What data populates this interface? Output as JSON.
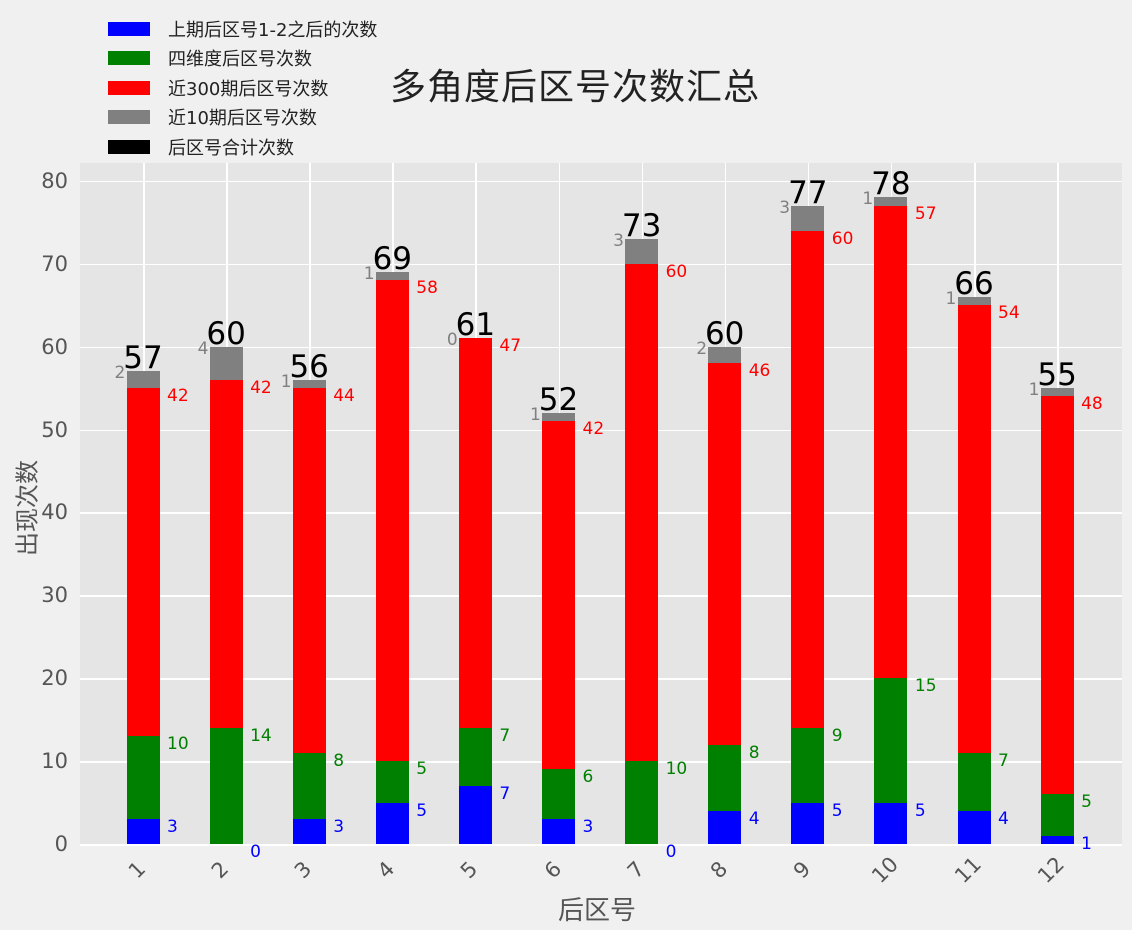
{
  "chart_data": {
    "type": "bar",
    "stacked": true,
    "title": "多角度后区号次数汇总",
    "xlabel": "后区号",
    "ylabel": "出现次数",
    "ylim": [
      0,
      80
    ],
    "yticks": [
      0,
      10,
      20,
      30,
      40,
      50,
      60,
      70,
      80
    ],
    "grid": true,
    "legend_position": "upper left",
    "categories": [
      "1",
      "2",
      "3",
      "4",
      "5",
      "6",
      "7",
      "8",
      "9",
      "10",
      "11",
      "12"
    ],
    "series": [
      {
        "name": "上期后区号1-2之后的次数",
        "color": "#0000ff",
        "values": [
          3,
          0,
          3,
          5,
          7,
          3,
          0,
          4,
          5,
          5,
          4,
          1
        ]
      },
      {
        "name": "四维度后区号次数",
        "color": "#008000",
        "values": [
          10,
          14,
          8,
          5,
          7,
          6,
          10,
          8,
          9,
          15,
          7,
          5
        ]
      },
      {
        "name": "近300期后区号次数",
        "color": "#ff0000",
        "values": [
          42,
          42,
          44,
          58,
          47,
          42,
          60,
          46,
          60,
          57,
          54,
          48
        ]
      },
      {
        "name": "近10期后区号次数",
        "color": "#808080",
        "values": [
          2,
          4,
          1,
          1,
          0,
          1,
          3,
          2,
          3,
          1,
          1,
          1
        ]
      },
      {
        "name": "后区号合计次数",
        "color": "#000000",
        "values": [
          57,
          60,
          56,
          69,
          61,
          52,
          73,
          60,
          77,
          78,
          66,
          55
        ]
      }
    ]
  },
  "title": "多角度后区号次数汇总",
  "axes": {
    "xlabel": "后区号",
    "ylabel": "出现次数",
    "yticks": [
      "0",
      "10",
      "20",
      "30",
      "40",
      "50",
      "60",
      "70",
      "80"
    ],
    "xticks": [
      "1",
      "2",
      "3",
      "4",
      "5",
      "6",
      "7",
      "8",
      "9",
      "10",
      "11",
      "12"
    ]
  },
  "legend": [
    {
      "label": "上期后区号1-2之后的次数",
      "color": "#0000ff"
    },
    {
      "label": "四维度后区号次数",
      "color": "#008000"
    },
    {
      "label": "近300期后区号次数",
      "color": "#ff0000"
    },
    {
      "label": "近10期后区号次数",
      "color": "#808080"
    },
    {
      "label": "后区号合计次数",
      "color": "#000000"
    }
  ]
}
